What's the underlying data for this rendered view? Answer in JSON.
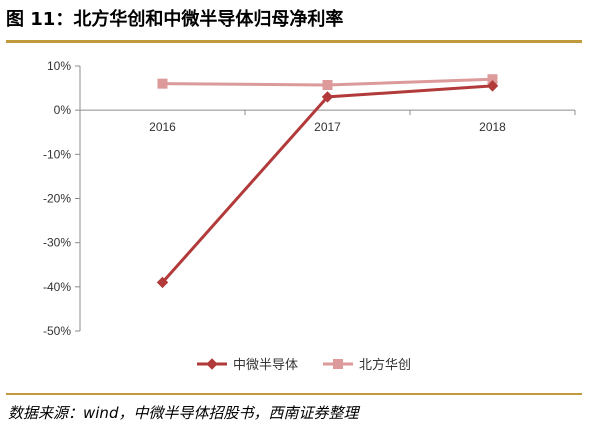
{
  "figure": {
    "title": "图 11：北方华创和中微半导体归母净利率",
    "source": "数据来源：wind，中微半导体招股书，西南证券整理"
  },
  "chart_data": {
    "type": "line",
    "categories": [
      "2016",
      "2017",
      "2018"
    ],
    "y_ticks": [
      10,
      0,
      -10,
      -20,
      -30,
      -40,
      -50
    ],
    "y_tick_labels": [
      "10%",
      "0%",
      "-10%",
      "-20%",
      "-30%",
      "-40%",
      "-50%"
    ],
    "ylim": [
      -50,
      10
    ],
    "grid": false,
    "legend_position": "bottom",
    "series": [
      {
        "name": "中微半导体",
        "values": [
          -39,
          3,
          5.5
        ],
        "color": "#b23a3a",
        "marker": "diamond"
      },
      {
        "name": "北方华创",
        "values": [
          6,
          5.7,
          7
        ],
        "color": "#dd9a9a",
        "marker": "square"
      }
    ]
  }
}
